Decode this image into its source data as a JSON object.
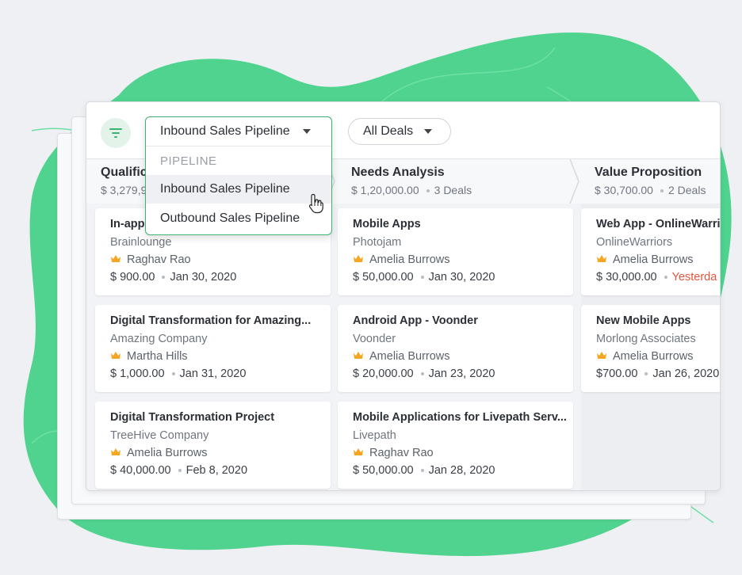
{
  "toolbar": {
    "filter_icon": "filter-icon",
    "pipeline_selected": "Inbound Sales Pipeline",
    "deals_filter": "All Deals"
  },
  "dropdown": {
    "section_label": "PIPELINE",
    "options": [
      "Inbound Sales Pipeline",
      "Outbound Sales Pipeline"
    ],
    "hovered_index": 0
  },
  "stages": [
    {
      "name": "Qualification",
      "amount": "$ 3,279,9",
      "count": ""
    },
    {
      "name": "Needs Analysis",
      "amount": "$ 1,20,000.00",
      "count": "3 Deals"
    },
    {
      "name": "Value Proposition",
      "amount": "$ 30,700.00",
      "count": "2 Deals"
    }
  ],
  "columns": [
    {
      "deals": [
        {
          "title": "In-app",
          "company": "Brainlounge",
          "owner": "Raghav Rao",
          "amount": "$ 900.00",
          "date": "Jan 30, 2020"
        },
        {
          "title": "Digital Transformation for Amazing...",
          "company": "Amazing Company",
          "owner": "Martha Hills",
          "amount": "$ 1,000.00",
          "date": "Jan 31, 2020"
        },
        {
          "title": "Digital Transformation Project",
          "company": "TreeHive Company",
          "owner": "Amelia Burrows",
          "amount": "$ 40,000.00",
          "date": "Feb 8, 2020"
        }
      ]
    },
    {
      "deals": [
        {
          "title": "Mobile Apps",
          "company": "Photojam",
          "owner": "Amelia Burrows",
          "amount": "$ 50,000.00",
          "date": "Jan 30, 2020"
        },
        {
          "title": "Android App - Voonder",
          "company": "Voonder",
          "owner": "Amelia Burrows",
          "amount": "$ 20,000.00",
          "date": "Jan 23, 2020"
        },
        {
          "title": "Mobile Applications for Livepath Serv...",
          "company": "Livepath",
          "owner": "Raghav Rao",
          "amount": "$ 50,000.00",
          "date": "Jan 28, 2020"
        }
      ]
    },
    {
      "deals": [
        {
          "title": "Web App - OnlineWarrio",
          "company": "OnlineWarriors",
          "owner": "Amelia Burrows",
          "amount": "$ 30,000.00",
          "date": "Yesterda",
          "date_overdue": true
        },
        {
          "title": "New Mobile Apps",
          "company": "Morlong Associates",
          "owner": "Amelia Burrows",
          "amount": "$700.00",
          "date": "Jan 26, 2020"
        }
      ]
    }
  ],
  "colors": {
    "accent": "#3cb371",
    "blob": "#4fd38e",
    "overdue": "#e8553d",
    "owner_crown": "#f5a623"
  }
}
